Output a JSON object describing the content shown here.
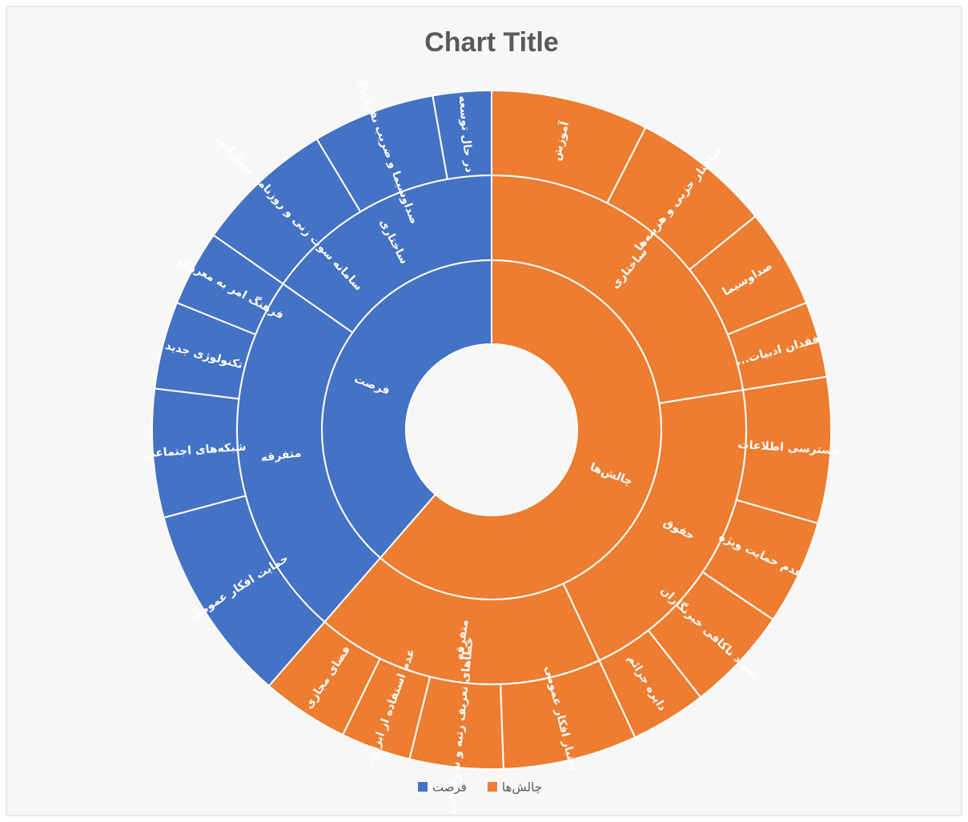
{
  "chart_data": {
    "type": "sunburst",
    "title": "Chart Title",
    "data": [
      {
        "name": "چالش‌ها",
        "color": "#ED7D31",
        "children": [
          {
            "name": "ساختاری",
            "children": [
              {
                "name": "آموزش",
                "value": 27
              },
              {
                "name": "ساختار حزبی و هزینه‌ها",
                "value": 24
              },
              {
                "name": "صداوسیما",
                "value": 17
              },
              {
                "name": "فقدان ادبیات...",
                "value": 13
              }
            ]
          },
          {
            "name": "حقوق",
            "children": [
              {
                "name": "دسترسی اطلاعات",
                "value": 25
              },
              {
                "name": "عدم حمایت ویژه",
                "value": 18
              },
              {
                "name": "سواد ناکافی خبرنگاران",
                "value": 18
              },
              {
                "name": "دایره جرائم",
                "value": 13
              }
            ]
          },
          {
            "name": "متفرقه",
            "children": [
              {
                "name": "اعتبار افکار عمومی",
                "value": 23
              },
              {
                "name": "خطاهای تعریف رتبه و سوءتلقی",
                "value": 16
              },
              {
                "name": "عدم استفاده از ابزار...",
                "value": 12
              },
              {
                "name": "فضای مجازی",
                "value": 15
              }
            ]
          }
        ]
      },
      {
        "name": "فرصت",
        "color": "#4472C4",
        "children": [
          {
            "name": "متفرقه",
            "children": [
              {
                "name": "حمایت افکار عمومی",
                "value": 34
              },
              {
                "name": "شبکه‌های اجتماعی",
                "value": 22
              },
              {
                "name": "تکنولوژی جدید",
                "value": 15
              },
              {
                "name": "فرهنگ امر به معروف",
                "value": 13
              }
            ]
          },
          {
            "name": "ساختاری",
            "children": [
              {
                "name": "سامانه سوت زنی و روزنامه مشارکتی",
                "value": 24
              },
              {
                "name": "صداوسیما و ضریب نفوذ بالا",
                "value": 21
              },
              {
                "name": "در حال توسعه",
                "value": 10
              }
            ]
          }
        ]
      }
    ]
  }
}
